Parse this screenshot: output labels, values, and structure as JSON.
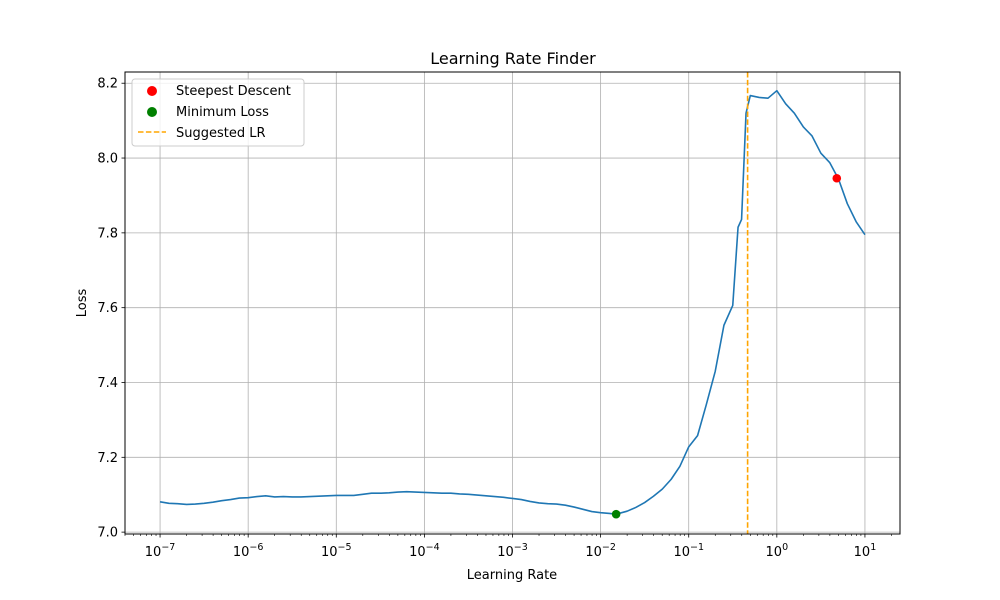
{
  "chart_data": {
    "type": "line",
    "title": "Learning Rate Finder",
    "xlabel": "Learning Rate",
    "ylabel": "Loss",
    "x_scale": "log",
    "xlim": [
      4e-08,
      25
    ],
    "ylim": [
      6.995,
      8.23
    ],
    "grid": true,
    "x_ticks": [
      {
        "value": 1e-07,
        "base": "10",
        "exp": "−7"
      },
      {
        "value": 1e-06,
        "base": "10",
        "exp": "−6"
      },
      {
        "value": 1e-05,
        "base": "10",
        "exp": "−5"
      },
      {
        "value": 0.0001,
        "base": "10",
        "exp": "−4"
      },
      {
        "value": 0.001,
        "base": "10",
        "exp": "−3"
      },
      {
        "value": 0.01,
        "base": "10",
        "exp": "−2"
      },
      {
        "value": 0.1,
        "base": "10",
        "exp": "−1"
      },
      {
        "value": 1,
        "base": "10",
        "exp": "0"
      },
      {
        "value": 10,
        "base": "10",
        "exp": "1"
      }
    ],
    "y_ticks": [
      {
        "value": 7.0,
        "label": "7.0"
      },
      {
        "value": 7.2,
        "label": "7.2"
      },
      {
        "value": 7.4,
        "label": "7.4"
      },
      {
        "value": 7.6,
        "label": "7.6"
      },
      {
        "value": 7.8,
        "label": "7.8"
      },
      {
        "value": 8.0,
        "label": "8.0"
      },
      {
        "value": 8.2,
        "label": "8.2"
      }
    ],
    "series": [
      {
        "color": "#1f77b4",
        "x": [
          1e-07,
          1.26e-07,
          1.58e-07,
          2e-07,
          2.51e-07,
          3.16e-07,
          3.98e-07,
          5.01e-07,
          6.31e-07,
          7.94e-07,
          1e-06,
          1.26e-06,
          1.58e-06,
          2e-06,
          2.51e-06,
          3.16e-06,
          3.98e-06,
          5.01e-06,
          6.31e-06,
          7.94e-06,
          1e-05,
          1.26e-05,
          1.58e-05,
          2e-05,
          2.51e-05,
          3.16e-05,
          3.98e-05,
          5.01e-05,
          6.31e-05,
          7.94e-05,
          0.0001,
          0.000126,
          0.000158,
          0.0002,
          0.000251,
          0.000316,
          0.000398,
          0.000501,
          0.000631,
          0.000794,
          0.001,
          0.00126,
          0.00158,
          0.002,
          0.00251,
          0.00316,
          0.00398,
          0.00501,
          0.00631,
          0.00794,
          0.01,
          0.0126,
          0.015,
          0.02,
          0.0251,
          0.0316,
          0.0398,
          0.0501,
          0.0631,
          0.0794,
          0.1,
          0.126,
          0.158,
          0.2,
          0.251,
          0.316,
          0.363,
          0.398,
          0.447,
          0.5,
          0.631,
          0.794,
          1.0,
          1.26,
          1.58,
          2.0,
          2.51,
          3.16,
          3.98,
          5.01,
          6.31,
          7.94,
          10.0
        ],
        "y": [
          7.081,
          7.077,
          7.076,
          7.074,
          7.075,
          7.077,
          7.08,
          7.084,
          7.087,
          7.091,
          7.092,
          7.095,
          7.097,
          7.094,
          7.095,
          7.094,
          7.094,
          7.095,
          7.096,
          7.097,
          7.098,
          7.098,
          7.098,
          7.101,
          7.104,
          7.104,
          7.105,
          7.107,
          7.108,
          7.107,
          7.106,
          7.105,
          7.104,
          7.104,
          7.102,
          7.101,
          7.099,
          7.097,
          7.095,
          7.093,
          7.09,
          7.087,
          7.082,
          7.078,
          7.076,
          7.075,
          7.072,
          7.067,
          7.061,
          7.055,
          7.052,
          7.05,
          7.048,
          7.056,
          7.066,
          7.079,
          7.096,
          7.115,
          7.141,
          7.176,
          7.228,
          7.258,
          7.34,
          7.43,
          7.553,
          7.606,
          7.815,
          7.836,
          8.12,
          8.167,
          8.162,
          8.16,
          8.18,
          8.145,
          8.12,
          8.083,
          8.059,
          8.013,
          7.988,
          7.944,
          7.878,
          7.83,
          7.795
        ]
      }
    ],
    "markers": [
      {
        "label": "Steepest Descent",
        "x": 4.79,
        "y": 7.946,
        "color": "#ff0000"
      },
      {
        "label": "Minimum Loss",
        "x": 0.015,
        "y": 7.048,
        "color": "#008000"
      }
    ],
    "vline": {
      "label": "Suggested LR",
      "x": 0.466,
      "color": "#ffa500"
    },
    "legend_position": "top-left"
  }
}
